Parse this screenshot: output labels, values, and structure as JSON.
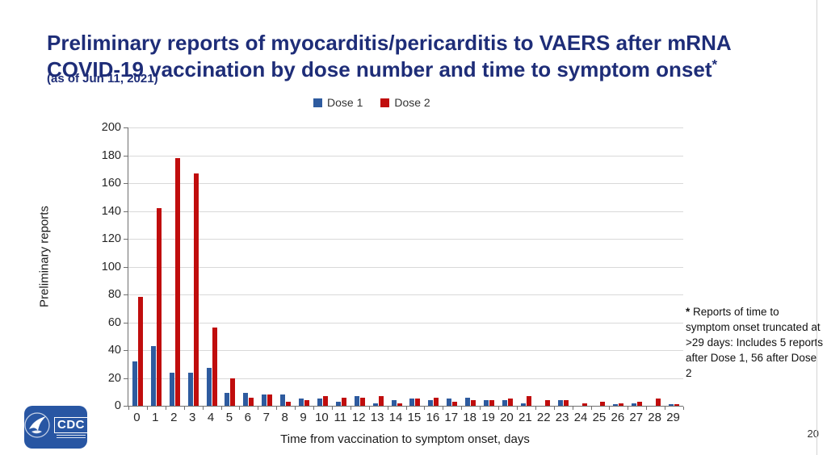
{
  "slide": {
    "title_line1": "Preliminary reports of myocarditis/pericarditis to VAERS after mRNA",
    "title_line2": "COVID-19 vaccination by dose number and time to symptom onset",
    "title_asterisk": "*",
    "subtitle": "(as of Jun 11, 2021)",
    "footnote_star": "*",
    "footnote_text": "Reports of time to symptom onset truncated at >29 days: Includes 5 reports after Dose 1, 56 after Dose 2",
    "page_number": "20",
    "logo_text": "CDC"
  },
  "colors": {
    "title": "#1e2d78",
    "dose1": "#2e5b9f",
    "dose2": "#c00d0d",
    "gridline": "#d9d9d9",
    "axis": "#6f6f6f"
  },
  "chart_data": {
    "type": "bar",
    "title": "",
    "xlabel": "Time from vaccination to symptom onset, days",
    "ylabel": "Preliminary reports",
    "ylim": [
      0,
      200
    ],
    "ytick_step": 20,
    "grid": true,
    "legend_position": "top",
    "categories": [
      "0",
      "1",
      "2",
      "3",
      "4",
      "5",
      "6",
      "7",
      "8",
      "9",
      "10",
      "11",
      "12",
      "13",
      "14",
      "15",
      "16",
      "17",
      "18",
      "19",
      "20",
      "21",
      "22",
      "23",
      "24",
      "25",
      "26",
      "27",
      "28",
      "29"
    ],
    "series": [
      {
        "name": "Dose 1",
        "color": "#2e5b9f",
        "values": [
          32,
          43,
          24,
          24,
          27,
          9,
          9,
          8,
          8,
          5,
          5,
          3,
          7,
          2,
          4,
          5,
          4,
          5,
          6,
          4,
          4,
          2,
          0,
          4,
          0,
          0,
          1,
          2,
          0,
          1
        ]
      },
      {
        "name": "Dose 2",
        "color": "#c00d0d",
        "values": [
          78,
          142,
          178,
          167,
          56,
          20,
          6,
          8,
          3,
          4,
          7,
          6,
          6,
          7,
          2,
          5,
          6,
          3,
          4,
          4,
          5,
          7,
          4,
          4,
          2,
          3,
          2,
          3,
          5,
          1
        ]
      }
    ]
  }
}
